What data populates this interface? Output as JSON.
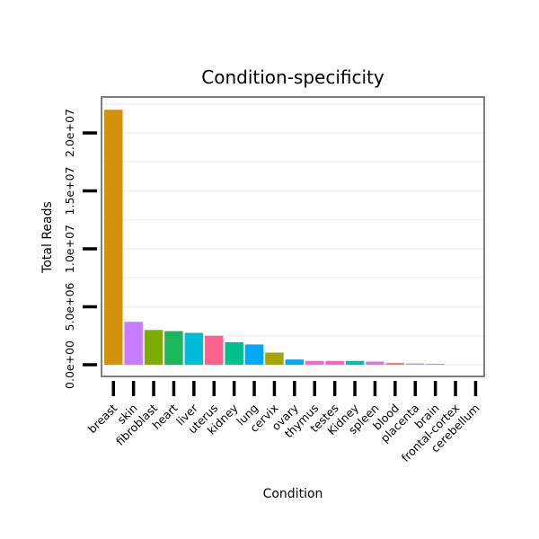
{
  "chart_data": {
    "type": "bar",
    "title": "Condition-specificity",
    "xlabel": "Condition",
    "ylabel": "Total Reads",
    "ylim": [
      0,
      24000000
    ],
    "yticks": [
      0,
      5000000,
      10000000,
      15000000,
      20000000
    ],
    "ytick_labels": [
      "0.0e+00",
      "5.0e+06",
      "1.0e+07",
      "1.5e+07",
      "2.0e+07"
    ],
    "categories": [
      "breast",
      "skin",
      "fibroblast",
      "heart",
      "liver",
      "uterus",
      "kidney",
      "lung",
      "cervix",
      "ovary",
      "thymus",
      "testes",
      "Kidney",
      "spleen",
      "blood",
      "placenta",
      "brain",
      "frontal-cortex",
      "cerebellum"
    ],
    "values": [
      22000000,
      3700000,
      3000000,
      2900000,
      2750000,
      2500000,
      1950000,
      1750000,
      1050000,
      450000,
      330000,
      330000,
      330000,
      270000,
      150000,
      110000,
      70000,
      0,
      0
    ],
    "colors": [
      "#D4920A",
      "#C77CFF",
      "#7CAE00",
      "#1AB85A",
      "#00BCD8",
      "#F8638F",
      "#00C08B",
      "#00A9FF",
      "#A3A500",
      "#00A9FF",
      "#F564E3",
      "#FF61C3",
      "#00BFA8",
      "#E76BF3",
      "#F8766D",
      "#8F9FFF",
      "#C9A000",
      "#00B0F6",
      "#00BA38"
    ],
    "grid": true,
    "legend": "none"
  }
}
